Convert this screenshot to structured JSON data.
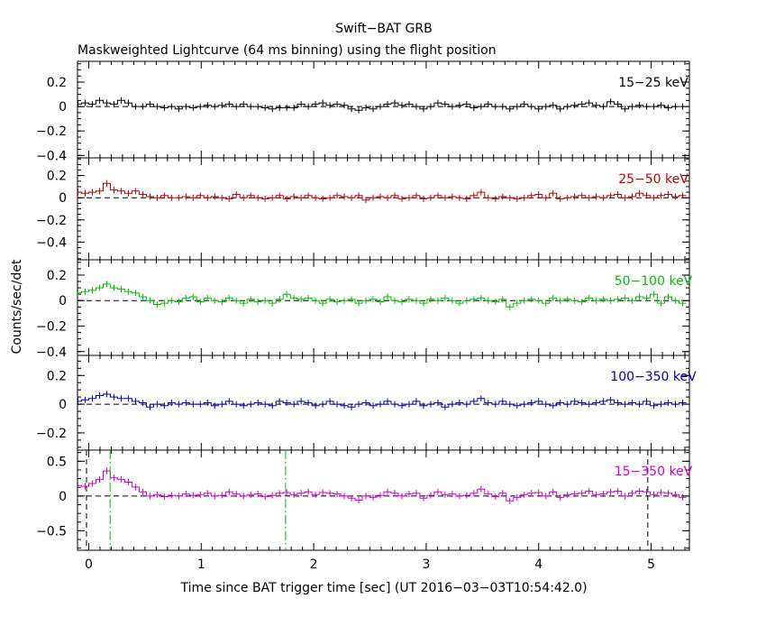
{
  "chart_data": {
    "type": "line",
    "title": "Swift−BAT GRB",
    "subtitle": "Maskweighted Lightcurve (64 ms binning) using the flight position",
    "xlabel": "Time since BAT trigger time [sec] (UT 2016−03−03T10:54:42.0)",
    "ylabel": "Counts/sec/det",
    "xlim": [
      -0.1,
      5.34
    ],
    "x_ticks": [
      "0",
      "1",
      "2",
      "3",
      "4",
      "5"
    ],
    "bin_width": 0.064,
    "panels": [
      {
        "label": "15−25 keV",
        "color": "#000000",
        "ylim": [
          -0.42,
          0.37
        ],
        "yticks": [
          "0.2",
          "0",
          "−0.2",
          "−0.4"
        ],
        "x": [
          -0.096,
          -0.032,
          0.032,
          0.096,
          0.16,
          0.224,
          0.288,
          0.352,
          0.416,
          0.48,
          0.544,
          0.608,
          0.672,
          0.736,
          0.8,
          0.864,
          0.928,
          0.992,
          1.056,
          1.12,
          1.184,
          1.248,
          1.312,
          1.376,
          1.44,
          1.504,
          1.568,
          1.632,
          1.696,
          1.76,
          1.824,
          1.888,
          1.952,
          2.016,
          2.08,
          2.144,
          2.208,
          2.272,
          2.336,
          2.4,
          2.464,
          2.528,
          2.592,
          2.656,
          2.72,
          2.784,
          2.848,
          2.912,
          2.976,
          3.04,
          3.104,
          3.168,
          3.232,
          3.296,
          3.36,
          3.424,
          3.488,
          3.552,
          3.616,
          3.68,
          3.744,
          3.808,
          3.872,
          3.936,
          4.0,
          4.064,
          4.128,
          4.192,
          4.256,
          4.32,
          4.384,
          4.448,
          4.512,
          4.576,
          4.64,
          4.704,
          4.768,
          4.832,
          4.896,
          4.96,
          5.024,
          5.088,
          5.152,
          5.216,
          5.28
        ],
        "values": [
          0.02,
          0.03,
          0.02,
          0.05,
          0.03,
          0.02,
          0.05,
          0.03,
          0.0,
          0.0,
          0.02,
          0.0,
          -0.01,
          0.0,
          -0.02,
          0.0,
          -0.01,
          0.0,
          0.01,
          0.0,
          0.01,
          0.02,
          0.0,
          0.02,
          0.0,
          0.0,
          -0.01,
          -0.02,
          -0.01,
          -0.01,
          -0.01,
          0.02,
          0.0,
          0.02,
          0.03,
          0.01,
          0.02,
          0.01,
          -0.02,
          -0.03,
          -0.01,
          -0.02,
          0.0,
          0.02,
          0.03,
          0.01,
          0.02,
          0.0,
          -0.02,
          0.0,
          0.03,
          0.02,
          0.0,
          0.01,
          0.02,
          -0.01,
          0.0,
          0.02,
          0.0,
          0.0,
          -0.02,
          0.0,
          0.02,
          0.0,
          -0.02,
          0.0,
          0.01,
          -0.02,
          0.0,
          0.01,
          0.02,
          0.03,
          0.01,
          0.0,
          0.04,
          0.02,
          -0.02,
          0.0,
          0.01,
          0.0,
          0.0,
          0.01,
          -0.01,
          0.0,
          0.0
        ]
      },
      {
        "label": "25−50 keV",
        "color": "#c00000",
        "ylim": [
          -0.56,
          0.36
        ],
        "yticks": [
          "0.2",
          "0",
          "−0.2",
          "−0.4"
        ],
        "x": [
          -0.096,
          -0.032,
          0.032,
          0.096,
          0.16,
          0.224,
          0.288,
          0.352,
          0.416,
          0.48,
          0.544,
          0.608,
          0.672,
          0.736,
          0.8,
          0.864,
          0.928,
          0.992,
          1.056,
          1.12,
          1.184,
          1.248,
          1.312,
          1.376,
          1.44,
          1.504,
          1.568,
          1.632,
          1.696,
          1.76,
          1.824,
          1.888,
          1.952,
          2.016,
          2.08,
          2.144,
          2.208,
          2.272,
          2.336,
          2.4,
          2.464,
          2.528,
          2.592,
          2.656,
          2.72,
          2.784,
          2.848,
          2.912,
          2.976,
          3.04,
          3.104,
          3.168,
          3.232,
          3.296,
          3.36,
          3.424,
          3.488,
          3.552,
          3.616,
          3.68,
          3.744,
          3.808,
          3.872,
          3.936,
          4.0,
          4.064,
          4.128,
          4.192,
          4.256,
          4.32,
          4.384,
          4.448,
          4.512,
          4.576,
          4.64,
          4.704,
          4.768,
          4.832,
          4.896,
          4.96,
          5.024,
          5.088,
          5.152,
          5.216,
          5.28
        ],
        "values": [
          0.05,
          0.04,
          0.05,
          0.06,
          0.13,
          0.07,
          0.06,
          0.04,
          0.06,
          0.03,
          0.01,
          0.0,
          0.02,
          0.0,
          0.0,
          0.01,
          0.0,
          0.02,
          0.0,
          0.01,
          0.0,
          -0.01,
          0.03,
          0.0,
          0.02,
          0.0,
          -0.01,
          0.0,
          0.02,
          -0.01,
          0.01,
          0.0,
          0.02,
          0.0,
          -0.01,
          0.0,
          0.02,
          0.01,
          0.0,
          0.02,
          -0.02,
          0.0,
          0.01,
          0.0,
          0.02,
          -0.01,
          0.0,
          0.02,
          -0.01,
          0.0,
          0.02,
          0.0,
          0.01,
          0.0,
          -0.01,
          0.02,
          0.05,
          0.0,
          -0.01,
          0.01,
          0.0,
          -0.01,
          0.0,
          0.02,
          0.03,
          0.0,
          0.04,
          -0.01,
          0.0,
          0.01,
          0.02,
          0.0,
          0.01,
          0.0,
          0.02,
          0.03,
          0.0,
          0.01,
          0.04,
          0.02,
          0.0,
          0.02,
          0.03,
          0.01,
          0.02
        ]
      },
      {
        "label": "50−100 keV",
        "color": "#00c000",
        "ylim": [
          -0.43,
          0.32
        ],
        "yticks": [
          "0.2",
          "0",
          "−0.2",
          "−0.4"
        ],
        "x": [
          -0.096,
          -0.032,
          0.032,
          0.096,
          0.16,
          0.224,
          0.288,
          0.352,
          0.416,
          0.48,
          0.544,
          0.608,
          0.672,
          0.736,
          0.8,
          0.864,
          0.928,
          0.992,
          1.056,
          1.12,
          1.184,
          1.248,
          1.312,
          1.376,
          1.44,
          1.504,
          1.568,
          1.632,
          1.696,
          1.76,
          1.824,
          1.888,
          1.952,
          2.016,
          2.08,
          2.144,
          2.208,
          2.272,
          2.336,
          2.4,
          2.464,
          2.528,
          2.592,
          2.656,
          2.72,
          2.784,
          2.848,
          2.912,
          2.976,
          3.04,
          3.104,
          3.168,
          3.232,
          3.296,
          3.36,
          3.424,
          3.488,
          3.552,
          3.616,
          3.68,
          3.744,
          3.808,
          3.872,
          3.936,
          4.0,
          4.064,
          4.128,
          4.192,
          4.256,
          4.32,
          4.384,
          4.448,
          4.512,
          4.576,
          4.64,
          4.704,
          4.768,
          4.832,
          4.896,
          4.96,
          5.024,
          5.088,
          5.152,
          5.216,
          5.28
        ],
        "values": [
          0.06,
          0.07,
          0.08,
          0.1,
          0.13,
          0.1,
          0.09,
          0.07,
          0.06,
          0.03,
          0.0,
          -0.03,
          -0.02,
          0.0,
          -0.01,
          0.02,
          0.03,
          -0.01,
          0.02,
          0.0,
          -0.01,
          0.02,
          0.0,
          -0.02,
          0.01,
          -0.01,
          0.0,
          -0.02,
          0.01,
          0.05,
          0.02,
          0.01,
          0.02,
          0.0,
          -0.02,
          0.01,
          -0.01,
          0.0,
          0.01,
          -0.02,
          0.0,
          0.01,
          -0.01,
          0.03,
          0.0,
          -0.01,
          0.01,
          0.0,
          -0.02,
          0.01,
          0.0,
          0.02,
          0.0,
          -0.02,
          0.0,
          0.01,
          0.02,
          0.0,
          -0.01,
          0.01,
          -0.05,
          -0.02,
          0.0,
          0.01,
          0.0,
          -0.02,
          0.02,
          0.0,
          0.01,
          0.0,
          -0.01,
          0.02,
          0.0,
          0.01,
          0.0,
          0.01,
          0.02,
          0.0,
          0.03,
          0.02,
          0.05,
          -0.02,
          0.03,
          0.0,
          -0.02
        ]
      },
      {
        "label": "100−350 keV",
        "color": "#0000b0",
        "ylim": [
          -0.32,
          0.34
        ],
        "yticks": [
          "0.2",
          "0",
          "−0.2"
        ],
        "x": [
          -0.096,
          -0.032,
          0.032,
          0.096,
          0.16,
          0.224,
          0.288,
          0.352,
          0.416,
          0.48,
          0.544,
          0.608,
          0.672,
          0.736,
          0.8,
          0.864,
          0.928,
          0.992,
          1.056,
          1.12,
          1.184,
          1.248,
          1.312,
          1.376,
          1.44,
          1.504,
          1.568,
          1.632,
          1.696,
          1.76,
          1.824,
          1.888,
          1.952,
          2.016,
          2.08,
          2.144,
          2.208,
          2.272,
          2.336,
          2.4,
          2.464,
          2.528,
          2.592,
          2.656,
          2.72,
          2.784,
          2.848,
          2.912,
          2.976,
          3.04,
          3.104,
          3.168,
          3.232,
          3.296,
          3.36,
          3.424,
          3.488,
          3.552,
          3.616,
          3.68,
          3.744,
          3.808,
          3.872,
          3.936,
          4.0,
          4.064,
          4.128,
          4.192,
          4.256,
          4.32,
          4.384,
          4.448,
          4.512,
          4.576,
          4.64,
          4.704,
          4.768,
          4.832,
          4.896,
          4.96,
          5.024,
          5.088,
          5.152,
          5.216,
          5.28
        ],
        "values": [
          0.02,
          0.03,
          0.04,
          0.06,
          0.07,
          0.05,
          0.04,
          0.04,
          0.02,
          0.01,
          -0.02,
          0.0,
          -0.01,
          0.01,
          0.0,
          0.01,
          0.0,
          0.0,
          0.01,
          -0.01,
          0.0,
          0.02,
          0.0,
          -0.01,
          0.0,
          0.01,
          0.0,
          -0.01,
          0.02,
          0.01,
          0.0,
          0.02,
          0.01,
          -0.01,
          0.0,
          0.02,
          0.0,
          -0.01,
          -0.02,
          0.0,
          0.01,
          -0.01,
          0.0,
          0.02,
          0.0,
          -0.01,
          0.0,
          0.02,
          -0.01,
          0.0,
          0.01,
          -0.02,
          0.0,
          0.01,
          0.0,
          0.02,
          0.04,
          0.01,
          0.0,
          0.02,
          0.0,
          -0.01,
          0.0,
          0.01,
          0.02,
          0.0,
          -0.01,
          0.01,
          0.0,
          0.02,
          0.01,
          0.0,
          0.01,
          0.02,
          0.03,
          0.01,
          0.0,
          0.01,
          0.0,
          0.02,
          -0.01,
          0.0,
          0.01,
          0.0,
          0.01
        ]
      },
      {
        "label": "15−350 keV",
        "color": "#d000d0",
        "ylim": [
          -0.78,
          0.66
        ],
        "yticks": [
          "0.5",
          "0",
          "−0.5"
        ],
        "x": [
          -0.096,
          -0.032,
          0.032,
          0.096,
          0.16,
          0.224,
          0.288,
          0.352,
          0.416,
          0.48,
          0.544,
          0.608,
          0.672,
          0.736,
          0.8,
          0.864,
          0.928,
          0.992,
          1.056,
          1.12,
          1.184,
          1.248,
          1.312,
          1.376,
          1.44,
          1.504,
          1.568,
          1.632,
          1.696,
          1.76,
          1.824,
          1.888,
          1.952,
          2.016,
          2.08,
          2.144,
          2.208,
          2.272,
          2.336,
          2.4,
          2.464,
          2.528,
          2.592,
          2.656,
          2.72,
          2.784,
          2.848,
          2.912,
          2.976,
          3.04,
          3.104,
          3.168,
          3.232,
          3.296,
          3.36,
          3.424,
          3.488,
          3.552,
          3.616,
          3.68,
          3.744,
          3.808,
          3.872,
          3.936,
          4.0,
          4.064,
          4.128,
          4.192,
          4.256,
          4.32,
          4.384,
          4.448,
          4.512,
          4.576,
          4.64,
          4.704,
          4.768,
          4.832,
          4.896,
          4.96,
          5.024,
          5.088,
          5.152,
          5.216,
          5.28
        ],
        "values": [
          0.15,
          0.14,
          0.18,
          0.24,
          0.36,
          0.26,
          0.24,
          0.2,
          0.13,
          0.06,
          0.0,
          0.02,
          -0.01,
          0.01,
          0.0,
          0.03,
          0.01,
          0.02,
          0.04,
          0.0,
          0.01,
          0.06,
          0.03,
          0.0,
          0.02,
          0.03,
          -0.01,
          0.01,
          0.04,
          0.05,
          0.02,
          0.04,
          0.06,
          0.02,
          0.05,
          0.04,
          0.03,
          0.0,
          -0.03,
          -0.06,
          0.0,
          -0.02,
          0.01,
          0.06,
          0.04,
          0.0,
          0.03,
          0.04,
          -0.03,
          0.01,
          0.06,
          0.02,
          0.03,
          0.0,
          0.01,
          0.04,
          0.1,
          0.03,
          -0.01,
          0.04,
          -0.07,
          -0.02,
          0.02,
          0.04,
          0.05,
          0.0,
          0.06,
          -0.02,
          0.02,
          0.03,
          0.04,
          0.07,
          0.02,
          0.03,
          0.06,
          0.07,
          0.0,
          0.04,
          0.07,
          0.06,
          0.02,
          0.05,
          0.04,
          0.02,
          -0.02
        ],
        "markers": [
          {
            "x": -0.02,
            "color": "#000000",
            "dash": "dashed"
          },
          {
            "x": 0.19,
            "color": "#00c000",
            "dash": "dashdot"
          },
          {
            "x": 1.75,
            "color": "#00c000",
            "dash": "dashdot"
          },
          {
            "x": 4.97,
            "color": "#000000",
            "dash": "dashed"
          }
        ]
      }
    ],
    "grid": false,
    "legend": "top-right label in each panel"
  }
}
